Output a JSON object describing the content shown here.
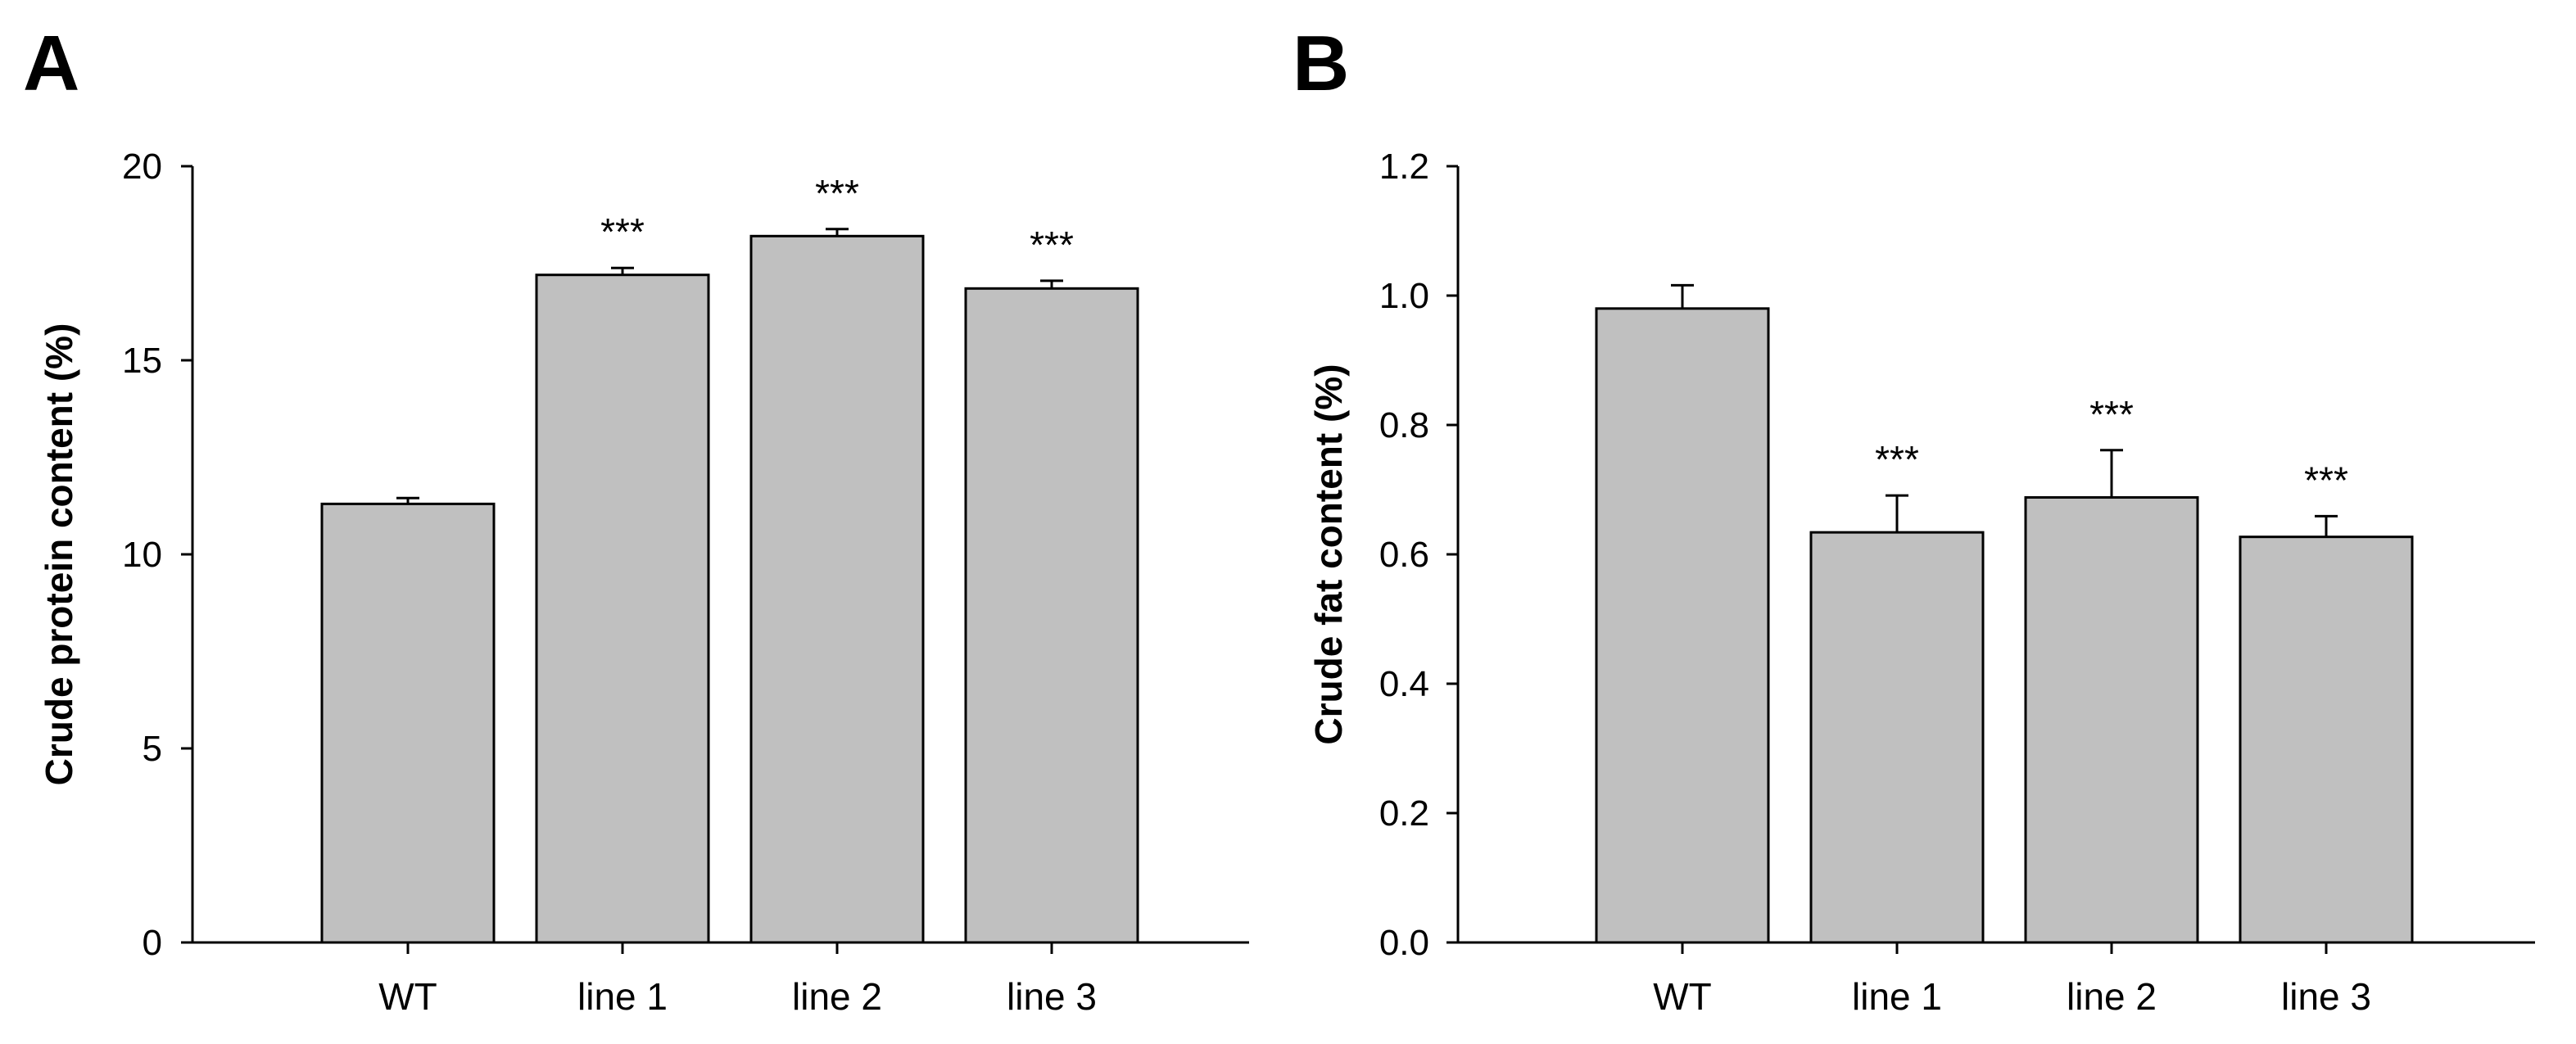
{
  "chart_data": [
    {
      "panel": "A",
      "type": "bar",
      "title": "",
      "xlabel": "",
      "ylabel": "Crude protein content (%)",
      "categories": [
        "WT",
        "line 1",
        "line 2",
        "line 3"
      ],
      "values": [
        11.3,
        17.2,
        18.2,
        16.85
      ],
      "errors": [
        0.15,
        0.18,
        0.18,
        0.2
      ],
      "significance": [
        "",
        "***",
        "***",
        "***"
      ],
      "ylim": [
        0,
        20
      ],
      "yticks": [
        0,
        5,
        10,
        15,
        20
      ],
      "ytick_labels": [
        "0",
        "5",
        "10",
        "15",
        "20"
      ],
      "grid": false,
      "bar_color": "#c0c0c0"
    },
    {
      "panel": "B",
      "type": "bar",
      "title": "",
      "xlabel": "",
      "ylabel": "Crude fat content (%)",
      "categories": [
        "WT",
        "line 1",
        "line 2",
        "line 3"
      ],
      "values": [
        0.98,
        0.634,
        0.688,
        0.627
      ],
      "errors": [
        0.036,
        0.057,
        0.073,
        0.032
      ],
      "significance": [
        "",
        "***",
        "***",
        "***"
      ],
      "ylim": [
        0,
        1.2
      ],
      "yticks": [
        0,
        0.2,
        0.4,
        0.6,
        0.8,
        1.0,
        1.2
      ],
      "ytick_labels": [
        "0.0",
        "0.2",
        "0.4",
        "0.6",
        "0.8",
        "1.0",
        "1.2"
      ],
      "grid": false,
      "bar_color": "#c0c0c0"
    }
  ]
}
